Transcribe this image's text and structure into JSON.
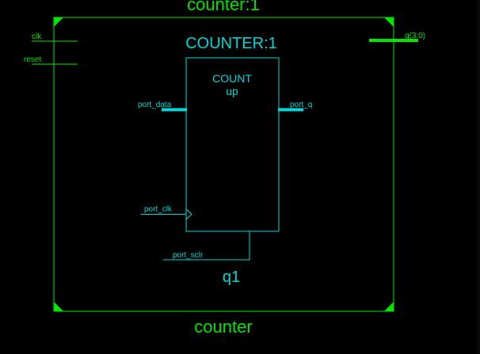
{
  "colors": {
    "background": "#000000",
    "outer_block": "#00e600",
    "inner_block": "#00d8d8",
    "wire": "#00e600",
    "bus": "#00e600"
  },
  "outer_block": {
    "instance_label_top": "counter:1",
    "module_label_bottom": "counter",
    "ports": {
      "clk": "clk",
      "reset": "reset",
      "q": "q(3:0)"
    }
  },
  "inner_block": {
    "instance_label": "COUNTER:1",
    "function_line1": "COUNT",
    "function_line2": "up",
    "instance_name": "q1",
    "ports": {
      "data": "port_data",
      "q": "port_q",
      "clk": "port_clk",
      "sclr": "port_sclr"
    }
  }
}
